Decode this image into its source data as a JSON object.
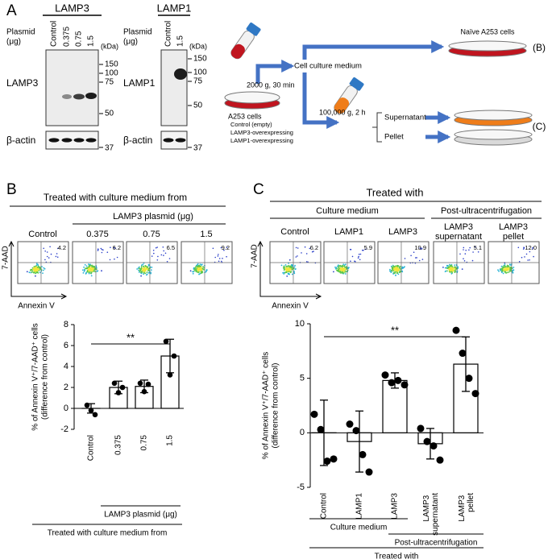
{
  "panel_a": {
    "letter": "A",
    "blot_lamp3": {
      "title": "LAMP3",
      "plasmid": [
        "Plasmid",
        "(μg)"
      ],
      "lanes": [
        "Control",
        "0.375",
        "0.75",
        "1.5"
      ],
      "kda": "(kDa)",
      "markers": [
        "150",
        "100",
        "75",
        "50"
      ],
      "target": "LAMP3",
      "loading": "β-actin",
      "loading_marker": "37"
    },
    "blot_lamp1": {
      "title": "LAMP1",
      "plasmid": [
        "Plasmid",
        "(μg)"
      ],
      "lanes": [
        "Control",
        "1.5"
      ],
      "kda": "(kDa)",
      "markers": [
        "150",
        "100",
        "75",
        "50"
      ],
      "target": "LAMP1",
      "loading": "β-actin",
      "loading_marker": "37"
    },
    "scheme": {
      "medium": "Cell culture medium",
      "spin1": "2000 g, 30 min",
      "cells": "A253 cells",
      "cell_lines": [
        "Control (empty)",
        "LAMP3-overexpressing",
        "LAMP1-overexpressing"
      ],
      "naive": "Naïve A253 cells",
      "ref_b": "(B)",
      "spin2": "100,000 g, 2 h",
      "supernatant": "Supernatant",
      "pellet": "Pellet",
      "ref_c": "(C)"
    }
  },
  "panel_b": {
    "letter": "B",
    "title": "Treated with culture medium from",
    "group": "LAMP3 plasmid (μg)",
    "columns": [
      "Control",
      "0.375",
      "0.75",
      "1.5"
    ],
    "quadrant_values": [
      "4.2",
      "6.2",
      "6.5",
      "9.2"
    ],
    "y_axis": "7-AAD",
    "x_axis": "Annexin V"
  },
  "panel_c": {
    "letter": "C",
    "title": "Treated with",
    "groups": [
      "Culture medium",
      "Post-ultracentrifugation"
    ],
    "columns": [
      [
        "Control"
      ],
      [
        "LAMP1"
      ],
      [
        "LAMP3"
      ],
      [
        "LAMP3",
        "supernatant"
      ],
      [
        "LAMP3",
        "pellet"
      ]
    ],
    "quadrant_values": [
      "6.2",
      "5.9",
      "10.9",
      "5.1",
      "12.0"
    ],
    "y_axis": "7-AAD",
    "x_axis": "Annexin V"
  },
  "chart_data": [
    {
      "type": "bar",
      "ylabel": [
        "% of Annexin V⁺/7-AAD⁺ cells",
        "(difference from control)"
      ],
      "categories": [
        "Control",
        "0.375",
        "0.75",
        "1.5"
      ],
      "values": [
        0,
        2.0,
        2.1,
        5.0
      ],
      "errors": [
        0.45,
        0.6,
        0.6,
        1.6
      ],
      "points": [
        [
          0.3,
          -0.2,
          -0.6
        ],
        [
          2.4,
          1.5,
          2.0
        ],
        [
          2.4,
          1.6,
          2.3
        ],
        [
          6.4,
          3.2,
          5.0
        ]
      ],
      "ylim": [
        -2,
        8
      ],
      "yticks": [
        -2,
        0,
        2,
        4,
        6,
        8
      ],
      "color": "#ffffff",
      "significance": "**",
      "group_labels": [
        "LAMP3 plasmid (μg)",
        "Treated with culture medium from"
      ]
    },
    {
      "type": "bar",
      "ylabel": [
        "% of Annexin V⁺/7-AAD⁺ cells",
        "(difference from control)"
      ],
      "categories": [
        "Control",
        "LAMP1",
        "LAMP3",
        "LAMP3 supernatant",
        "LAMP3 pellet"
      ],
      "values": [
        0,
        -0.8,
        4.8,
        -1.0,
        6.3
      ],
      "errors": [
        3.0,
        2.8,
        0.7,
        1.4,
        2.5
      ],
      "points": [
        [
          1.7,
          0.3,
          -2.6,
          -2.4
        ],
        [
          0.8,
          0.2,
          -2.0,
          -3.6
        ],
        [
          5.3,
          4.6,
          4.8,
          4.4
        ],
        [
          0.4,
          -0.8,
          -1.2,
          -2.5
        ],
        [
          9.4,
          7.3,
          5.0,
          3.6
        ]
      ],
      "ylim": [
        -5,
        10
      ],
      "yticks": [
        -5,
        0,
        5,
        10
      ],
      "color": "#ffffff",
      "significance": "**",
      "group_labels": [
        "Culture medium",
        "Post-ultracentrifugation",
        "Treated with"
      ]
    }
  ]
}
